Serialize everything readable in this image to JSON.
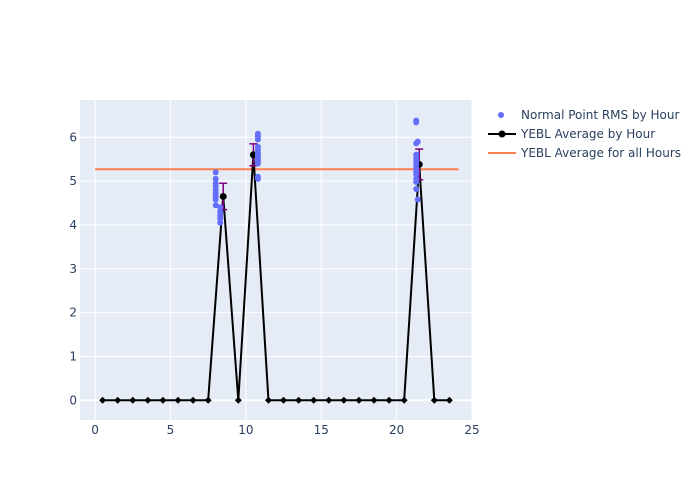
{
  "chart_data": {
    "type": "line",
    "title": "",
    "xlabel": "",
    "ylabel": "",
    "xlim": [
      -1,
      25
    ],
    "ylim": [
      -0.45,
      6.85
    ],
    "x_ticks": [
      0,
      5,
      10,
      15,
      20,
      25
    ],
    "y_ticks": [
      0,
      1,
      2,
      3,
      4,
      5,
      6
    ],
    "grid": true,
    "legend_position": "top-right",
    "colors": {
      "plot_bg": "#E5ECF6",
      "grid": "#ffffff",
      "scatter": "#636EFA",
      "average": "#000000",
      "error_bar": "#800080",
      "overall": "#FF7F50",
      "text": "#2a3f5f"
    },
    "series": [
      {
        "name": "Normal Point RMS by Hour",
        "kind": "scatter",
        "points": [
          [
            8.0,
            5.2
          ],
          [
            8.0,
            5.05
          ],
          [
            8.0,
            4.95
          ],
          [
            8.0,
            4.88
          ],
          [
            8.0,
            4.8
          ],
          [
            8.0,
            4.72
          ],
          [
            8.0,
            4.65
          ],
          [
            8.0,
            4.58
          ],
          [
            8.0,
            4.45
          ],
          [
            8.3,
            4.4
          ],
          [
            8.3,
            4.3
          ],
          [
            8.3,
            4.22
          ],
          [
            8.3,
            4.15
          ],
          [
            8.3,
            4.05
          ],
          [
            10.8,
            6.08
          ],
          [
            10.8,
            6.02
          ],
          [
            10.8,
            5.95
          ],
          [
            10.8,
            5.78
          ],
          [
            10.8,
            5.72
          ],
          [
            10.8,
            5.65
          ],
          [
            10.8,
            5.6
          ],
          [
            10.8,
            5.55
          ],
          [
            10.8,
            5.5
          ],
          [
            10.8,
            5.45
          ],
          [
            10.8,
            5.4
          ],
          [
            10.8,
            5.1
          ],
          [
            10.8,
            5.05
          ],
          [
            21.3,
            6.38
          ],
          [
            21.3,
            6.34
          ],
          [
            21.4,
            5.9
          ],
          [
            21.3,
            5.86
          ],
          [
            21.3,
            5.6
          ],
          [
            21.3,
            5.52
          ],
          [
            21.3,
            5.45
          ],
          [
            21.3,
            5.38
          ],
          [
            21.3,
            5.3
          ],
          [
            21.3,
            5.22
          ],
          [
            21.3,
            5.15
          ],
          [
            21.3,
            5.05
          ],
          [
            21.3,
            4.98
          ],
          [
            21.3,
            4.82
          ],
          [
            21.4,
            4.58
          ]
        ]
      },
      {
        "name": "YEBL Average by Hour",
        "kind": "line",
        "x": [
          0.5,
          1.5,
          2.5,
          3.5,
          4.5,
          5.5,
          6.5,
          7.5,
          8.5,
          9.5,
          10.5,
          11.5,
          12.5,
          13.5,
          14.5,
          15.5,
          16.5,
          17.5,
          18.5,
          19.5,
          20.5,
          21.5,
          22.5,
          23.5
        ],
        "y": [
          0,
          0,
          0,
          0,
          0,
          0,
          0,
          0,
          4.65,
          0,
          5.6,
          0,
          0,
          0,
          0,
          0,
          0,
          0,
          0,
          0,
          0,
          5.38,
          0,
          0
        ],
        "error": [
          0,
          0,
          0,
          0,
          0,
          0,
          0,
          0,
          0.3,
          0,
          0.25,
          0,
          0,
          0,
          0,
          0,
          0,
          0,
          0,
          0,
          0,
          0.35,
          0,
          0
        ]
      },
      {
        "name": "YEBL Average for all Hours",
        "kind": "hline",
        "x": [
          0,
          24.1
        ],
        "y": 5.27
      }
    ]
  }
}
